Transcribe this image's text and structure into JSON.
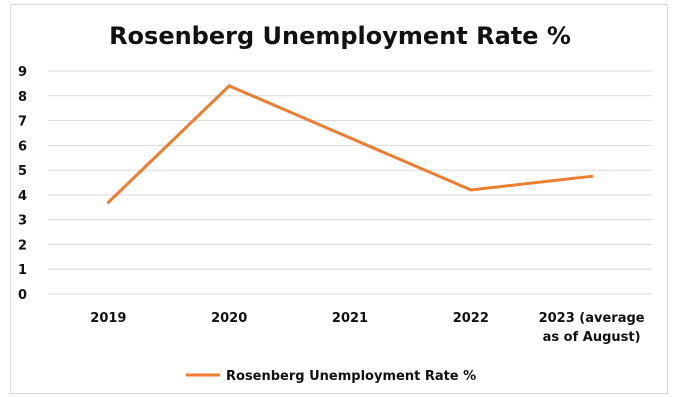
{
  "chart_data": {
    "type": "line",
    "title": "Rosenberg Unemployment Rate %",
    "categories": [
      "2019",
      "2020",
      "2021",
      "2022",
      "2023 (average as of August)"
    ],
    "category_label_lines": [
      [
        "2019"
      ],
      [
        "2020"
      ],
      [
        "2021"
      ],
      [
        "2022"
      ],
      [
        "2023 (average",
        "as of August)"
      ]
    ],
    "series": [
      {
        "name": "Rosenberg Unemployment Rate %",
        "values": [
          3.7,
          8.4,
          6.3,
          4.2,
          4.75
        ],
        "color": "#ED7D31"
      }
    ],
    "ylim": [
      0,
      9
    ],
    "yticks": [
      "0",
      "1",
      "2",
      "3",
      "4",
      "5",
      "6",
      "7",
      "8",
      "9"
    ],
    "grid": true,
    "legend_position": "bottom"
  }
}
